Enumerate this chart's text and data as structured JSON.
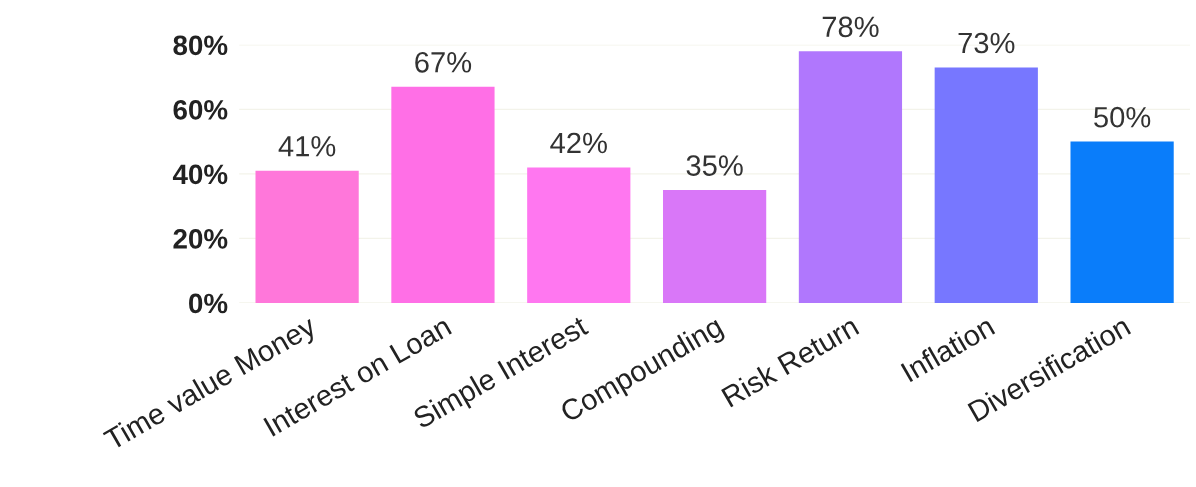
{
  "chart_data": {
    "type": "bar",
    "categories": [
      "Time value Money",
      "Interest on Loan",
      "Simple Interest",
      "Compounding",
      "Risk Return",
      "Inflation",
      "Diversification"
    ],
    "values": [
      41,
      67,
      42,
      35,
      78,
      73,
      50
    ],
    "colors": [
      "#ff77da",
      "#ff6fe6",
      "#ff77f0",
      "#d977f8",
      "#b077fd",
      "#7777ff",
      "#0a7dfa"
    ],
    "value_labels": [
      "41%",
      "67%",
      "42%",
      "35%",
      "78%",
      "73%",
      "50%"
    ],
    "ylim": [
      0,
      80
    ],
    "yticks": [
      {
        "value": 0,
        "label": "0%"
      },
      {
        "value": 20,
        "label": "20%"
      },
      {
        "value": 40,
        "label": "40%"
      },
      {
        "value": 60,
        "label": "60%"
      },
      {
        "value": 80,
        "label": "80%"
      }
    ],
    "grid": "y",
    "legend": false
  }
}
